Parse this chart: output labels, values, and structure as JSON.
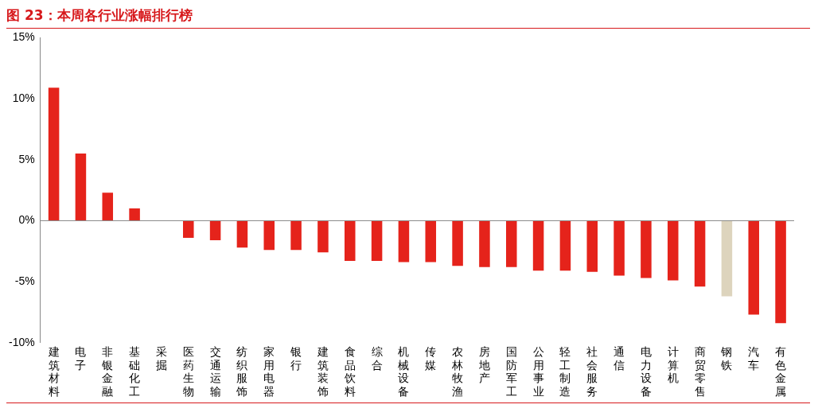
{
  "chart_data": {
    "type": "bar",
    "title": "图 23：本周各行业涨幅排行榜",
    "categories": [
      "建筑材料",
      "电子",
      "非银金融",
      "基础化工",
      "采掘",
      "医药生物",
      "交通运输",
      "纺织服饰",
      "家用电器",
      "银行",
      "建筑装饰",
      "食品饮料",
      "综合",
      "机械设备",
      "传媒",
      "农林牧渔",
      "房地产",
      "国防军工",
      "公用事业",
      "轻工制造",
      "社会服务",
      "通信",
      "电力设备",
      "计算机",
      "商贸零售",
      "钢铁",
      "汽车",
      "有色金属"
    ],
    "values": [
      10.9,
      5.5,
      2.3,
      1.0,
      0,
      -1.4,
      -1.6,
      -2.2,
      -2.4,
      -2.4,
      -2.6,
      -3.3,
      -3.3,
      -3.4,
      -3.4,
      -3.7,
      -3.8,
      -3.8,
      -4.1,
      -4.1,
      -4.2,
      -4.5,
      -4.7,
      -4.9,
      -5.4,
      -6.2,
      -7.7,
      -8.4
    ],
    "colors": [
      "#e5231b",
      "#e5231b",
      "#e5231b",
      "#e5231b",
      "#e5231b",
      "#e5231b",
      "#e5231b",
      "#e5231b",
      "#e5231b",
      "#e5231b",
      "#e5231b",
      "#e5231b",
      "#e5231b",
      "#e5231b",
      "#e5231b",
      "#e5231b",
      "#e5231b",
      "#e5231b",
      "#e5231b",
      "#e5231b",
      "#e5231b",
      "#e5231b",
      "#e5231b",
      "#e5231b",
      "#e5231b",
      "#ddd4bd",
      "#e5231b",
      "#e5231b"
    ],
    "ylim": [
      -10,
      15
    ],
    "yticks": [
      {
        "value": -10,
        "label": "-10%"
      },
      {
        "value": -5,
        "label": "-5%"
      },
      {
        "value": 0,
        "label": "0%"
      },
      {
        "value": 5,
        "label": "5%"
      },
      {
        "value": 10,
        "label": "10%"
      },
      {
        "value": 15,
        "label": "15%"
      }
    ],
    "ref_lines": [
      {
        "axis": "y",
        "value": 0,
        "color": "#888888"
      }
    ],
    "grid": false,
    "legend": false
  }
}
